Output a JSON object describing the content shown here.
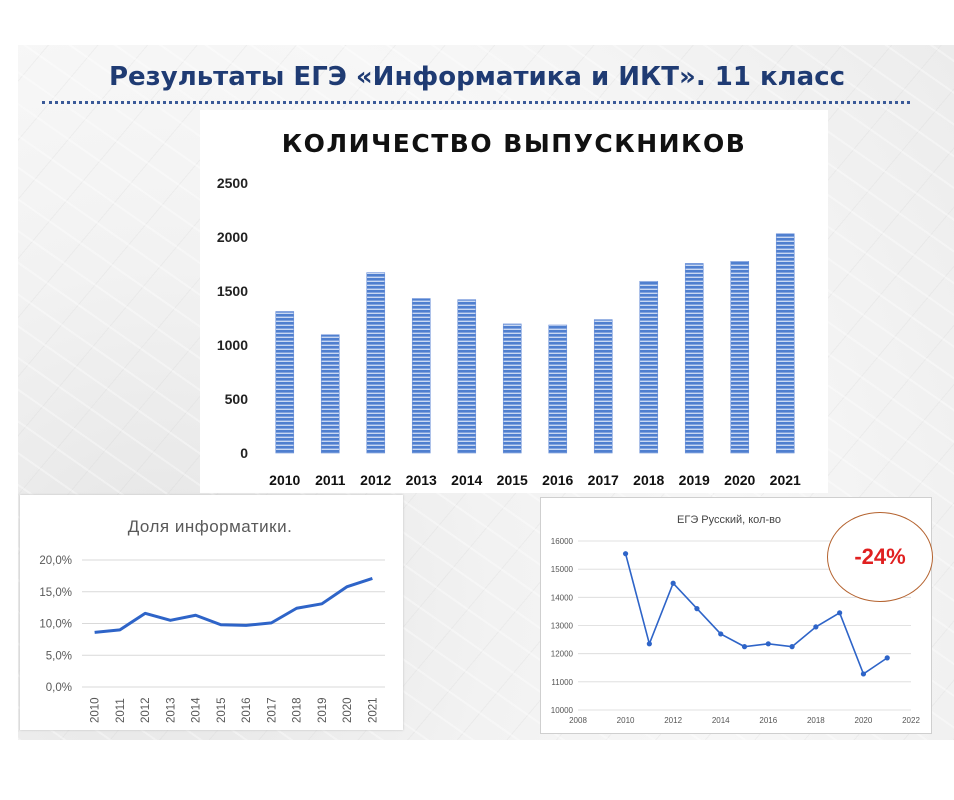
{
  "slide": {
    "title": "Результаты ЕГЭ «Информатика и ИКТ». 11 класс",
    "badge": "-24%",
    "colors": {
      "title": "#1f3b73",
      "bars": "#4f7fcf",
      "line": "#2e64c8",
      "badge_text": "#e02020",
      "badge_border": "#b4622e"
    }
  },
  "chart_data": [
    {
      "type": "bar",
      "title": "КОЛИЧЕСТВО ВЫПУСКНИКОВ",
      "categories": [
        "2010",
        "2011",
        "2012",
        "2013",
        "2014",
        "2015",
        "2016",
        "2017",
        "2018",
        "2019",
        "2020",
        "2021"
      ],
      "values": [
        1310,
        1095,
        1670,
        1430,
        1420,
        1195,
        1185,
        1235,
        1590,
        1755,
        1775,
        2030
      ],
      "yticks": [
        "0",
        "500",
        "1000",
        "1500",
        "2000",
        "2500"
      ],
      "ylim": [
        0,
        2500
      ],
      "grid": false
    },
    {
      "type": "line",
      "title": "Доля информатики.",
      "categories": [
        "2010",
        "2011",
        "2012",
        "2013",
        "2014",
        "2015",
        "2016",
        "2017",
        "2018",
        "2019",
        "2020",
        "2021"
      ],
      "values": [
        8.6,
        9.0,
        11.6,
        10.5,
        11.3,
        9.8,
        9.7,
        10.1,
        12.4,
        13.1,
        15.8,
        17.1
      ],
      "yticks": [
        "0,0%",
        "5,0%",
        "10,0%",
        "15,0%",
        "20,0%"
      ],
      "ylim": [
        0,
        20
      ],
      "grid": true
    },
    {
      "type": "scatter",
      "title": "ЕГЭ Русский, кол-во",
      "x": [
        2010,
        2011,
        2012,
        2013,
        2014,
        2015,
        2016,
        2017,
        2018,
        2019,
        2020,
        2021
      ],
      "y": [
        15550,
        12350,
        14500,
        13600,
        12700,
        12250,
        12350,
        12250,
        12950,
        13450,
        11280,
        11850
      ],
      "xticks": [
        "2008",
        "2010",
        "2012",
        "2014",
        "2016",
        "2018",
        "2020",
        "2022"
      ],
      "yticks": [
        "10000",
        "11000",
        "12000",
        "13000",
        "14000",
        "15000",
        "16000"
      ],
      "xlim": [
        2008,
        2022
      ],
      "ylim": [
        10000,
        16000
      ],
      "grid": true
    }
  ]
}
